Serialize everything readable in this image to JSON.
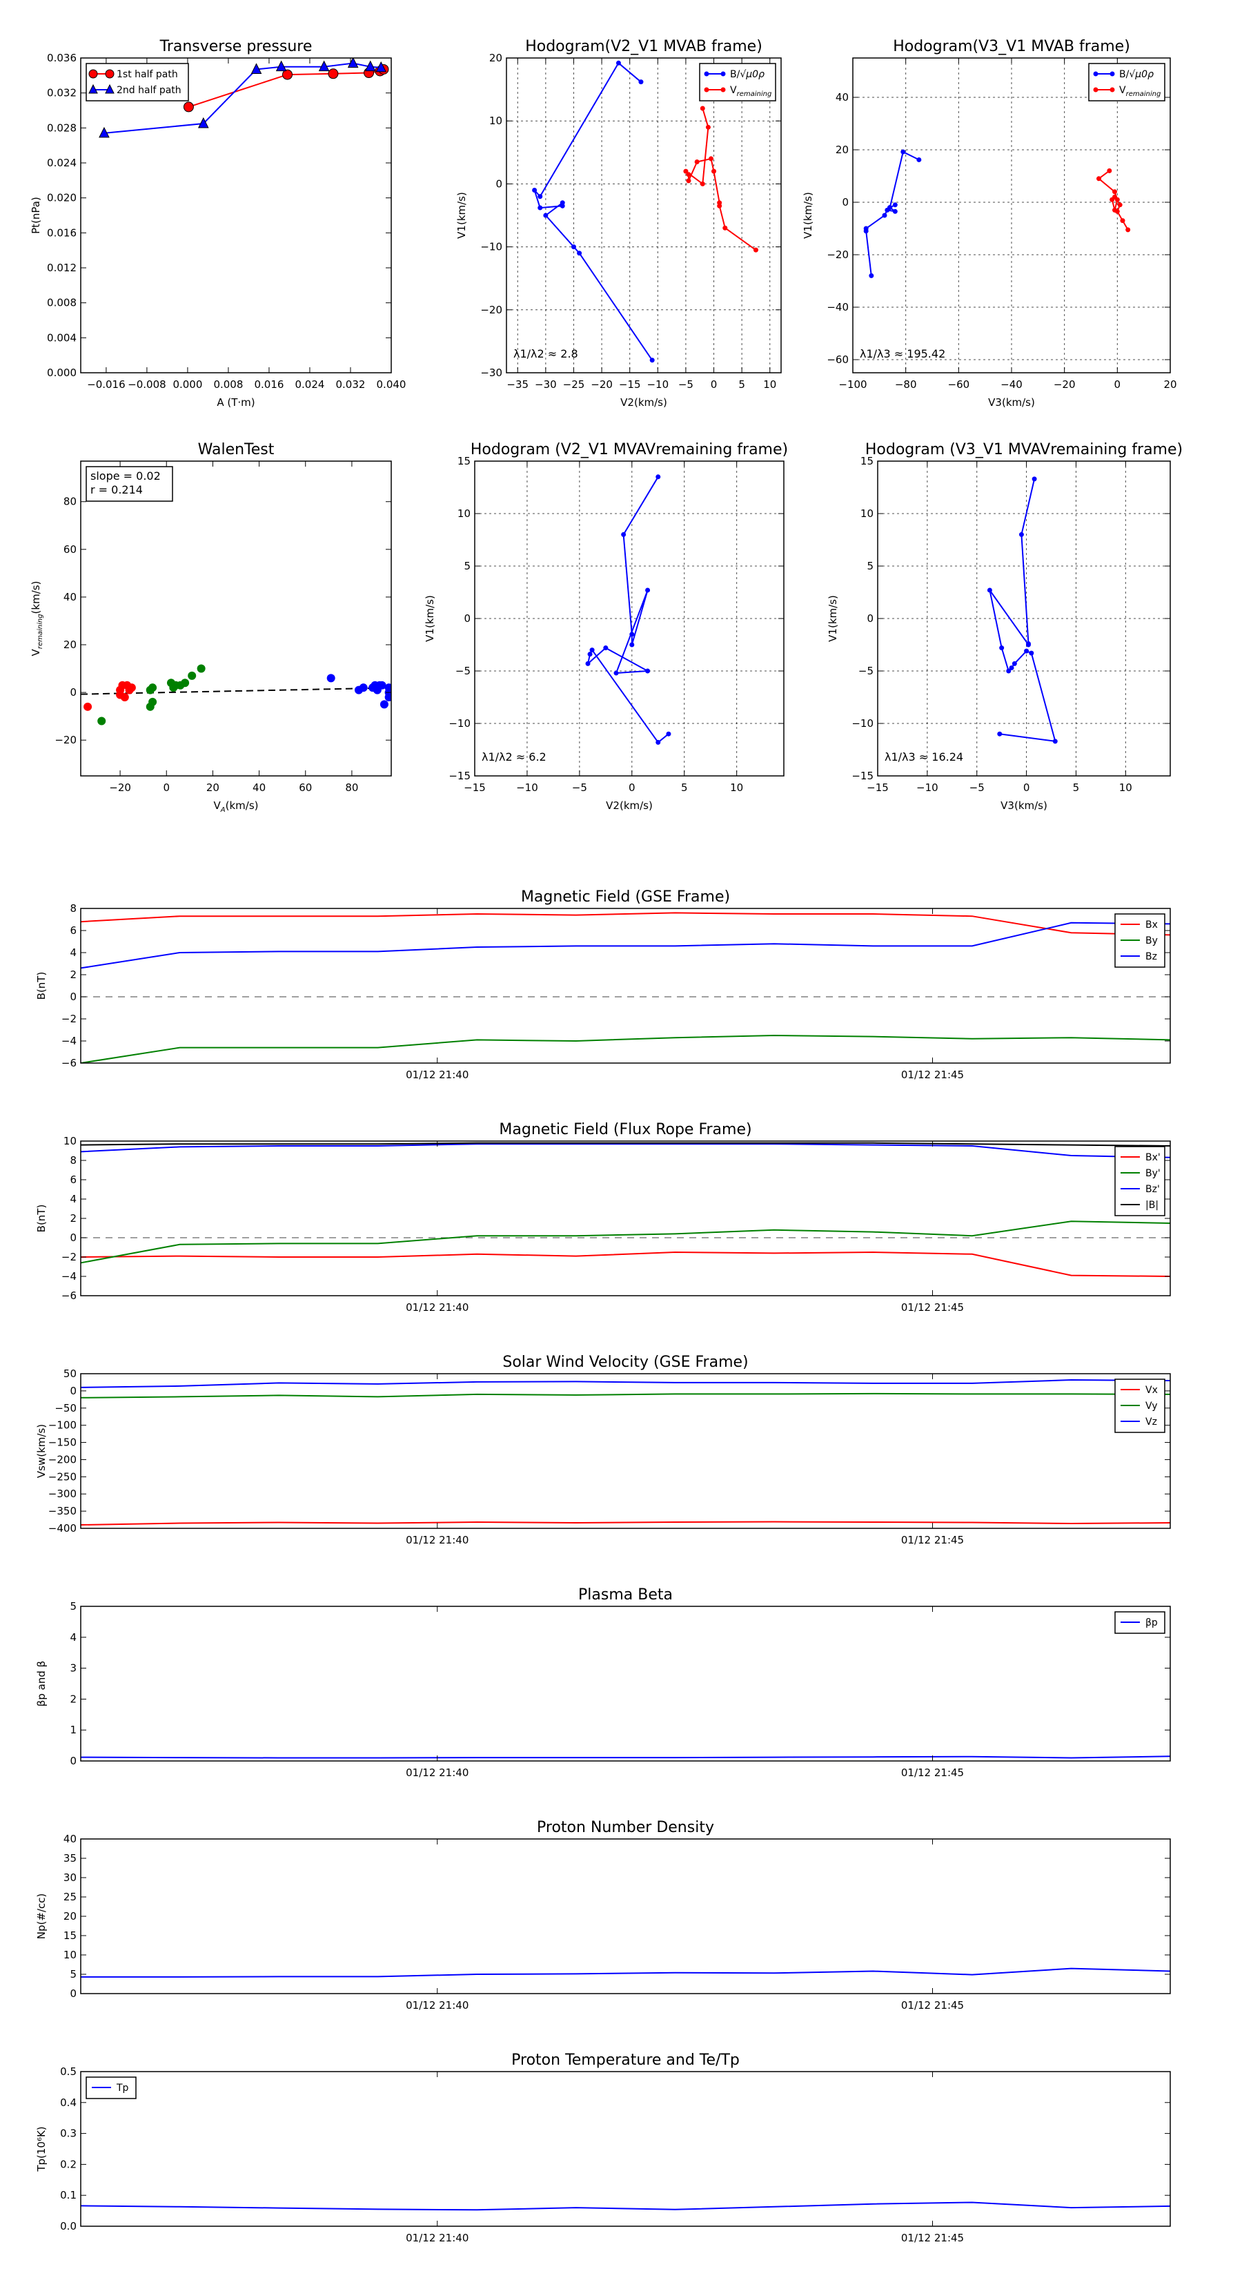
{
  "figure": {
    "colors": {
      "red": "#ff0000",
      "blue": "#0000ff",
      "green": "#008000",
      "black": "#000000"
    }
  },
  "chart_data": [
    {
      "id": "p1",
      "type": "line",
      "title": "Transverse pressure",
      "xlabel": "A (T·m)",
      "ylabel": "Pt(nPa)",
      "xlim": [
        -0.021,
        0.04
      ],
      "ylim": [
        0,
        0.036
      ],
      "xticks": [
        -0.016,
        -0.008,
        0.0,
        0.008,
        0.016,
        0.024,
        0.032,
        0.04
      ],
      "xticklabels": [
        "−0.016",
        "−0.008",
        "0.000",
        "0.008",
        "0.016",
        "0.024",
        "0.032",
        "0.040"
      ],
      "yticks": [
        0,
        0.004,
        0.008,
        0.012,
        0.016,
        0.02,
        0.024,
        0.028,
        0.032,
        0.036
      ],
      "yticklabels": [
        "0.000",
        "0.004",
        "0.008",
        "0.012",
        "0.016",
        "0.020",
        "0.024",
        "0.028",
        "0.032",
        "0.036"
      ],
      "grid": false,
      "legend": "upper left",
      "series": [
        {
          "name": "1st half path",
          "color": "#ff0000",
          "marker": "circle",
          "x": [
            0.0002,
            0.0196,
            0.0286,
            0.0356,
            0.0378,
            0.0385
          ],
          "y": [
            0.0304,
            0.0341,
            0.0342,
            0.0343,
            0.0345,
            0.0347
          ]
        },
        {
          "name": "2nd half path",
          "color": "#0000ff",
          "marker": "triangle",
          "x": [
            -0.0164,
            0.0031,
            0.0135,
            0.0184,
            0.0268,
            0.0325,
            0.0359,
            0.038
          ],
          "y": [
            0.0274,
            0.0285,
            0.0347,
            0.035,
            0.035,
            0.0354,
            0.035,
            0.0349
          ]
        }
      ]
    },
    {
      "id": "p2",
      "type": "line",
      "title": "Hodogram(V2_V1 MVAB frame)",
      "xlabel": "V2(km/s)",
      "ylabel": "V1(km/s)",
      "xlim": [
        -37,
        12
      ],
      "ylim": [
        -30,
        20
      ],
      "xticks": [
        -35,
        -30,
        -25,
        -20,
        -15,
        -10,
        -5,
        0,
        5,
        10
      ],
      "xticklabels": [
        "−35",
        "−30",
        "−25",
        "−20",
        "−15",
        "−10",
        "−5",
        "0",
        "5",
        "10"
      ],
      "yticks": [
        -30,
        -20,
        -10,
        0,
        10,
        20
      ],
      "yticklabels": [
        "−30",
        "−20",
        "−10",
        "0",
        "10",
        "20"
      ],
      "grid": true,
      "legend": "upper right",
      "annotation": "λ1/λ2 ≈ 2.8",
      "series": [
        {
          "name": "B/√μ0ρ",
          "color": "#0000ff",
          "x": [
            -11,
            -24,
            -25,
            -30,
            -27,
            -27,
            -31,
            -32,
            -31,
            -17,
            -13
          ],
          "y": [
            -28,
            -11,
            -10,
            -5,
            -3,
            -3.5,
            -3.8,
            -1,
            -2,
            19.2,
            16.2
          ]
        },
        {
          "name": "Vremaining",
          "color": "#ff0000",
          "x": [
            7.5,
            2,
            1,
            1,
            0,
            -0.5,
            -3,
            -4.5,
            -4.5,
            -5,
            -2,
            -1,
            -2
          ],
          "y": [
            -10.5,
            -7,
            -3.5,
            -3,
            2,
            4,
            3.5,
            0.5,
            1.5,
            2,
            0,
            9,
            12
          ]
        }
      ]
    },
    {
      "id": "p3",
      "type": "line",
      "title": "Hodogram(V3_V1 MVAB frame)",
      "xlabel": "V3(km/s)",
      "ylabel": "V1(km/s)",
      "xlim": [
        -100,
        20
      ],
      "ylim": [
        -65,
        55
      ],
      "xticks": [
        -100,
        -80,
        -60,
        -40,
        -20,
        0,
        20
      ],
      "xticklabels": [
        "−100",
        "−80",
        "−60",
        "−40",
        "−20",
        "0",
        "20"
      ],
      "yticks": [
        -60,
        -40,
        -20,
        0,
        20,
        40
      ],
      "yticklabels": [
        "−60",
        "−40",
        "−20",
        "0",
        "20",
        "40"
      ],
      "grid": true,
      "legend": "upper right",
      "annotation": "λ1/λ3 ≈ 195.42",
      "series": [
        {
          "name": "B/√μ0ρ",
          "color": "#0000ff",
          "x": [
            -93,
            -95,
            -95,
            -88,
            -87,
            -84,
            -86,
            -84,
            -86,
            -81,
            -75
          ],
          "y": [
            -28,
            -11,
            -10,
            -5,
            -3,
            -3.5,
            -2,
            -1,
            -2,
            19.2,
            16.2
          ]
        },
        {
          "name": "Vremaining",
          "color": "#ff0000",
          "x": [
            4,
            2,
            0,
            1,
            -1,
            -2,
            -1,
            0,
            -1,
            -7,
            -3
          ],
          "y": [
            -10.5,
            -7,
            -3.5,
            -1,
            2,
            1,
            -3,
            1,
            4,
            9,
            12
          ]
        }
      ]
    },
    {
      "id": "p4",
      "type": "scatter",
      "title": "WalenTest",
      "xlabel": "VA(km/s)",
      "ylabel": "Vremaining(km/s)",
      "xlim": [
        -37,
        97
      ],
      "ylim": [
        -35,
        97
      ],
      "xticks": [
        -20,
        0,
        20,
        40,
        60,
        80
      ],
      "xticklabels": [
        "−20",
        "0",
        "20",
        "40",
        "60",
        "80"
      ],
      "yticks": [
        -20,
        0,
        20,
        40,
        60,
        80
      ],
      "yticklabels": [
        "−20",
        "0",
        "20",
        "40",
        "60",
        "80"
      ],
      "grid": false,
      "annotation_lines": [
        "slope = 0.02",
        "r = 0.214"
      ],
      "fit": {
        "slope": 0.02,
        "intercept": 0.0
      },
      "series": [
        {
          "color": "#ff0000",
          "x": [
            -34,
            -20,
            -19,
            -17,
            -16,
            -18,
            -15,
            -20
          ],
          "y": [
            -6,
            1,
            3,
            3,
            1,
            -2,
            2,
            -1
          ]
        },
        {
          "color": "#008000",
          "x": [
            -28,
            -7,
            -6,
            -7,
            -6,
            2,
            3,
            4,
            6,
            8,
            11,
            15
          ],
          "y": [
            -12,
            -6,
            -4,
            1,
            2,
            4,
            2,
            3,
            3,
            4,
            7,
            10
          ]
        },
        {
          "color": "#0000ff",
          "x": [
            71,
            83,
            85,
            89,
            90,
            91,
            92,
            93,
            94,
            96,
            96,
            96
          ],
          "y": [
            6,
            1,
            2,
            2,
            3,
            1,
            3,
            3,
            -5,
            -2,
            0,
            2
          ]
        }
      ]
    },
    {
      "id": "p5",
      "type": "line",
      "title": "Hodogram (V2_V1 MVAVremaining frame)",
      "xlabel": "V2(km/s)",
      "ylabel": "V1(km/s)",
      "xlim": [
        -15,
        14.5
      ],
      "ylim": [
        -15,
        15
      ],
      "xticks": [
        -15,
        -10,
        -5,
        0,
        5,
        10
      ],
      "xticklabels": [
        "−15",
        "−10",
        "−5",
        "0",
        "5",
        "10"
      ],
      "yticks": [
        -15,
        -10,
        -5,
        0,
        5,
        10,
        15
      ],
      "yticklabels": [
        "−15",
        "−10",
        "−5",
        "0",
        "5",
        "10",
        "15"
      ],
      "grid": true,
      "annotation": "λ1/λ2 ≈ 6.2",
      "series": [
        {
          "color": "#0000ff",
          "x": [
            3.5,
            2.5,
            -3.8,
            -4,
            -4.2,
            -2.5,
            1.5,
            -1.5,
            1.5,
            0,
            0,
            -0.8,
            2.5
          ],
          "y": [
            -11,
            -11.8,
            -3,
            -3.4,
            -4.3,
            -2.8,
            -5,
            -5.2,
            2.7,
            -2.5,
            -1.5,
            8,
            13.5
          ]
        }
      ]
    },
    {
      "id": "p6",
      "type": "line",
      "title": "Hodogram (V3_V1 MVAVremaining frame)",
      "xlabel": "V3(km/s)",
      "ylabel": "V1(km/s)",
      "xlim": [
        -15,
        14.5
      ],
      "ylim": [
        -15,
        15
      ],
      "xticks": [
        -15,
        -10,
        -5,
        0,
        5,
        10
      ],
      "xticklabels": [
        "−15",
        "−10",
        "−5",
        "0",
        "5",
        "10"
      ],
      "yticks": [
        -15,
        -10,
        -5,
        0,
        5,
        10,
        15
      ],
      "yticklabels": [
        "−15",
        "−10",
        "−5",
        "0",
        "5",
        "10",
        "15"
      ],
      "grid": true,
      "annotation": "λ1/λ3 ≈ 16.24",
      "series": [
        {
          "color": "#0000ff",
          "x": [
            -2.7,
            2.9,
            0.5,
            0,
            -1.2,
            -1.5,
            -1.8,
            -2.5,
            -3.7,
            0.2,
            0.2,
            -0.5,
            0.8
          ],
          "y": [
            -11,
            -11.7,
            -3.3,
            -3.1,
            -4.3,
            -4.7,
            -5,
            -2.8,
            2.7,
            -2.5,
            -2.4,
            8,
            13.3
          ]
        }
      ]
    },
    {
      "id": "t1",
      "type": "line",
      "title": "Magnetic Field (GSE Frame)",
      "ylabel": "B(nT)",
      "ylim": [
        -6,
        8
      ],
      "yticks": [
        -6,
        -4,
        -2,
        0,
        2,
        4,
        6,
        8
      ],
      "yticklabels": [
        "−6",
        "−4",
        "−2",
        "0",
        "2",
        "4",
        "6",
        "8"
      ],
      "xticklabels": [
        "01/12 21:40",
        "01/12 21:45"
      ],
      "tick_positions": [
        3.6,
        8.6
      ],
      "n": 11,
      "zero_line": true,
      "legend": "upper right",
      "series": [
        {
          "name": "Bx",
          "color": "#ff0000",
          "values": [
            6.8,
            7.3,
            7.3,
            7.3,
            7.5,
            7.4,
            7.6,
            7.5,
            7.5,
            7.3,
            5.8,
            5.6
          ]
        },
        {
          "name": "By",
          "color": "#008000",
          "values": [
            -6.0,
            -4.6,
            -4.6,
            -4.6,
            -3.9,
            -4.0,
            -3.7,
            -3.5,
            -3.6,
            -3.8,
            -3.7,
            -3.9
          ]
        },
        {
          "name": "Bz",
          "color": "#0000ff",
          "values": [
            2.6,
            4.0,
            4.1,
            4.1,
            4.5,
            4.6,
            4.6,
            4.8,
            4.6,
            4.6,
            6.7,
            6.6
          ]
        }
      ]
    },
    {
      "id": "t2",
      "type": "line",
      "title": "Magnetic Field (Flux Rope Frame)",
      "ylabel": "B(nT)",
      "ylim": [
        -6,
        10
      ],
      "yticks": [
        -6,
        -4,
        -2,
        0,
        2,
        4,
        6,
        8,
        10
      ],
      "yticklabels": [
        "−6",
        "−4",
        "−2",
        "0",
        "2",
        "4",
        "6",
        "8",
        "10"
      ],
      "xticklabels": [
        "01/12 21:40",
        "01/12 21:45"
      ],
      "tick_positions": [
        3.6,
        8.6
      ],
      "n": 11,
      "zero_line": true,
      "legend": "upper right",
      "series": [
        {
          "name": "Bx'",
          "color": "#ff0000",
          "values": [
            -2.0,
            -1.9,
            -2.0,
            -2.0,
            -1.7,
            -1.9,
            -1.5,
            -1.6,
            -1.5,
            -1.7,
            -3.9,
            -4.0
          ]
        },
        {
          "name": "By'",
          "color": "#008000",
          "values": [
            -2.6,
            -0.7,
            -0.6,
            -0.6,
            0.2,
            0.2,
            0.4,
            0.8,
            0.6,
            0.2,
            1.7,
            1.5
          ]
        },
        {
          "name": "Bz'",
          "color": "#0000ff",
          "values": [
            8.9,
            9.4,
            9.5,
            9.5,
            9.7,
            9.7,
            9.7,
            9.7,
            9.6,
            9.5,
            8.5,
            8.3
          ]
        },
        {
          "name": "|B|",
          "color": "#000000",
          "values": [
            9.6,
            9.7,
            9.7,
            9.7,
            9.8,
            9.8,
            9.8,
            9.8,
            9.8,
            9.7,
            9.6,
            9.5
          ]
        }
      ]
    },
    {
      "id": "t3",
      "type": "line",
      "title": "Solar Wind Velocity (GSE Frame)",
      "ylabel": "Vsw(km/s)",
      "ylim": [
        -400,
        50
      ],
      "yticks": [
        -400,
        -350,
        -300,
        -250,
        -200,
        -150,
        -100,
        -50,
        0,
        50
      ],
      "yticklabels": [
        "−400",
        "−350",
        "−300",
        "−250",
        "−200",
        "−150",
        "−100",
        "−50",
        "0",
        "50"
      ],
      "xticklabels": [
        "01/12 21:40",
        "01/12 21:45"
      ],
      "tick_positions": [
        3.6,
        8.6
      ],
      "n": 11,
      "zero_line": false,
      "legend": "upper right",
      "series": [
        {
          "name": "Vx",
          "color": "#ff0000",
          "values": [
            -390,
            -385,
            -383,
            -385,
            -382,
            -384,
            -382,
            -381,
            -382,
            -383,
            -386,
            -384
          ]
        },
        {
          "name": "Vy",
          "color": "#008000",
          "values": [
            -20,
            -17,
            -13,
            -17,
            -10,
            -12,
            -9,
            -9,
            -8,
            -9,
            -9,
            -10
          ]
        },
        {
          "name": "Vz",
          "color": "#0000ff",
          "values": [
            10,
            14,
            23,
            20,
            26,
            27,
            24,
            24,
            22,
            22,
            32,
            30
          ]
        }
      ]
    },
    {
      "id": "t4",
      "type": "line",
      "title": "Plasma Beta",
      "ylabel": "βp and β",
      "ylim": [
        0,
        5
      ],
      "yticks": [
        0,
        1,
        2,
        3,
        4,
        5
      ],
      "yticklabels": [
        "0",
        "1",
        "2",
        "3",
        "4",
        "5"
      ],
      "xticklabels": [
        "01/12 21:40",
        "01/12 21:45"
      ],
      "tick_positions": [
        3.6,
        8.6
      ],
      "n": 11,
      "zero_line": false,
      "legend": "upper right",
      "series": [
        {
          "name": "βp",
          "color": "#0000ff",
          "values": [
            0.12,
            0.11,
            0.1,
            0.1,
            0.11,
            0.11,
            0.11,
            0.12,
            0.13,
            0.14,
            0.1,
            0.15
          ]
        }
      ]
    },
    {
      "id": "t5",
      "type": "line",
      "title": "Proton Number Density",
      "ylabel": "Np(#/cc)",
      "ylim": [
        0,
        40
      ],
      "yticks": [
        0,
        5,
        10,
        15,
        20,
        25,
        30,
        35,
        40
      ],
      "yticklabels": [
        "0",
        "5",
        "10",
        "15",
        "20",
        "25",
        "30",
        "35",
        "40"
      ],
      "xticklabels": [
        "01/12 21:40",
        "01/12 21:45"
      ],
      "tick_positions": [
        3.6,
        8.6
      ],
      "n": 11,
      "zero_line": false,
      "series": [
        {
          "color": "#0000ff",
          "values": [
            4.3,
            4.3,
            4.4,
            4.4,
            5.0,
            5.1,
            5.4,
            5.3,
            5.8,
            4.9,
            6.5,
            5.8
          ]
        }
      ]
    },
    {
      "id": "t6",
      "type": "line",
      "title": "Proton Temperature and Te/Tp",
      "ylabel": "Tp(10⁶K)",
      "ylim": [
        0,
        0.5
      ],
      "yticks": [
        0,
        0.1,
        0.2,
        0.3,
        0.4,
        0.5
      ],
      "yticklabels": [
        "0.0",
        "0.1",
        "0.2",
        "0.3",
        "0.4",
        "0.5"
      ],
      "xticklabels": [
        "01/12 21:40",
        "01/12 21:45"
      ],
      "tick_positions": [
        3.6,
        8.6
      ],
      "n": 11,
      "zero_line": false,
      "legend": "upper left",
      "series": [
        {
          "name": "Tp",
          "color": "#0000ff",
          "values": [
            0.066,
            0.063,
            0.059,
            0.055,
            0.053,
            0.06,
            0.054,
            0.063,
            0.072,
            0.077,
            0.06,
            0.065
          ]
        }
      ]
    }
  ]
}
